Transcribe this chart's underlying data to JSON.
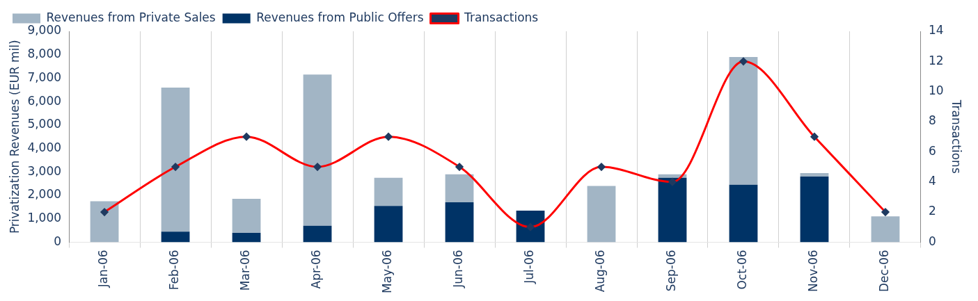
{
  "chart_data": {
    "type": "bar",
    "stacked": true,
    "ylabel": "Privatization Revenues (EUR mil)",
    "y2label": "Transactions",
    "categories": [
      "Jan-06",
      "Feb-06",
      "Mar-06",
      "Apr-06",
      "May-06",
      "Jun-06",
      "Jul-06",
      "Aug-06",
      "Sep-06",
      "Oct-06",
      "Nov-06",
      "Dec-06"
    ],
    "series": [
      {
        "name": "Revenues from Public Offers",
        "color": "#003366",
        "values": [
          0,
          450,
          400,
          700,
          1550,
          1700,
          1350,
          0,
          2750,
          2450,
          2800,
          0
        ]
      },
      {
        "name": "Revenues from Private Sales",
        "color": "#a2b5c5",
        "values": [
          1750,
          6150,
          1450,
          6450,
          1200,
          1200,
          0,
          2400,
          150,
          5450,
          150,
          1100
        ]
      },
      {
        "name": "Transactions",
        "type": "line",
        "axis": "y2",
        "color": "#ff0000",
        "marker": "diamond",
        "values": [
          2,
          5,
          7,
          5,
          7,
          5,
          1,
          5,
          4,
          12,
          7,
          2
        ]
      }
    ],
    "ylim": [
      0,
      9000
    ],
    "yticks": [
      0,
      {
        "value": 1000,
        "label": "1,000"
      },
      {
        "value": 2000,
        "label": "2,000"
      },
      {
        "value": 3000,
        "label": "3,000"
      },
      {
        "value": 4000,
        "label": "4,000"
      },
      {
        "value": 5000,
        "label": "5,000"
      },
      {
        "value": 6000,
        "label": "6,000"
      },
      {
        "value": 7000,
        "label": "7,000"
      },
      {
        "value": 8000,
        "label": "8,000"
      },
      {
        "value": 9000,
        "label": "9,000"
      }
    ],
    "y2lim": [
      0,
      14
    ],
    "y2ticks": [
      0,
      2,
      4,
      6,
      8,
      10,
      12,
      14
    ],
    "grid": "x",
    "legend": "top left"
  }
}
